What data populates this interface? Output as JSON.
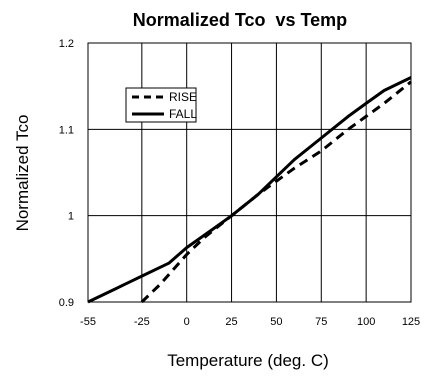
{
  "chart_data": {
    "type": "line",
    "title": "Normalized Tco  vs Temp",
    "xlabel": "Temperature (deg. C)",
    "ylabel": "Normalized Tco",
    "xlim": [
      -55,
      125
    ],
    "ylim": [
      0.9,
      1.2
    ],
    "x_ticks": [
      -55,
      -25,
      0,
      25,
      50,
      75,
      100,
      125
    ],
    "y_ticks": [
      0.9,
      1,
      1.1,
      1.2
    ],
    "x_tick_labels": [
      "-55",
      "-25",
      "0",
      "25",
      "50",
      "75",
      "100",
      "125"
    ],
    "y_tick_labels": [
      "0.9",
      "1",
      "1.1",
      "1.2"
    ],
    "grid": true,
    "legend_position": "upper-left",
    "series": [
      {
        "name": "RISE",
        "style": "dashed",
        "color": "#000000",
        "x": [
          -25,
          -15,
          0,
          10,
          25,
          40,
          50,
          60,
          75,
          90,
          100,
          110,
          125
        ],
        "y": [
          0.9,
          0.92,
          0.955,
          0.975,
          1.0,
          1.025,
          1.04,
          1.055,
          1.075,
          1.1,
          1.115,
          1.13,
          1.155
        ]
      },
      {
        "name": "FALL",
        "style": "solid",
        "color": "#000000",
        "x": [
          -55,
          -40,
          -25,
          -10,
          0,
          15,
          25,
          40,
          50,
          60,
          75,
          90,
          100,
          110,
          125
        ],
        "y": [
          0.9,
          0.915,
          0.93,
          0.945,
          0.963,
          0.985,
          1.0,
          1.025,
          1.045,
          1.065,
          1.09,
          1.115,
          1.13,
          1.145,
          1.16
        ]
      }
    ]
  }
}
